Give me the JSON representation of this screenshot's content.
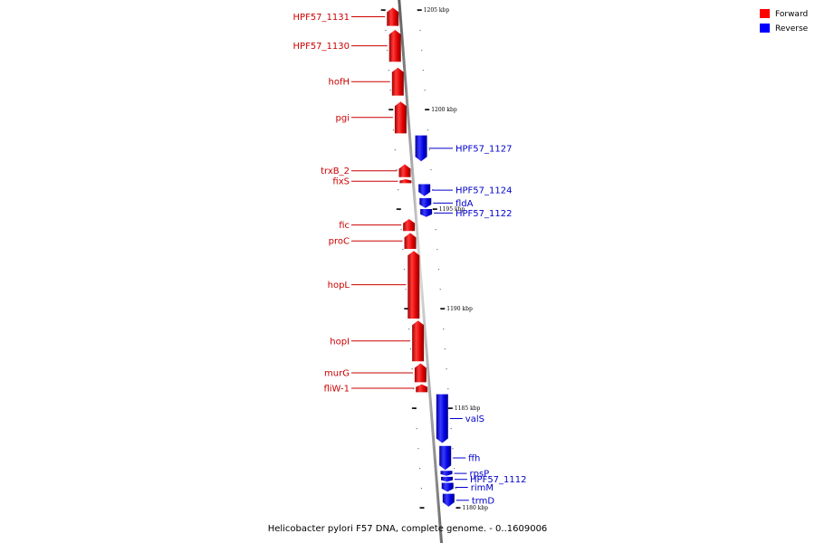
{
  "caption": "Helicobacter pylori F57 DNA, complete genome. - 0..1609006",
  "legend": {
    "forward": {
      "label": "Forward",
      "color": "#ff0000"
    },
    "reverse": {
      "label": "Reverse",
      "color": "#0000ff"
    }
  },
  "scale": {
    "unit": "kbp",
    "ticks": [
      {
        "kbp": 1180,
        "label": "1180 kbp"
      },
      {
        "kbp": 1185,
        "label": "1185 kbp"
      },
      {
        "kbp": 1190,
        "label": "1190 kbp"
      },
      {
        "kbp": 1195,
        "label": "1195 kbp"
      },
      {
        "kbp": 1200,
        "label": "1200 kbp"
      },
      {
        "kbp": 1205,
        "label": "1205 kbp"
      }
    ]
  },
  "genes": [
    {
      "name": "HPF57_1131",
      "strand": "forward",
      "start_kbp": 1205.12,
      "end_kbp": 1204.2
    },
    {
      "name": "HPF57_1130",
      "strand": "forward",
      "start_kbp": 1204.0,
      "end_kbp": 1202.4
    },
    {
      "name": "hofH",
      "strand": "forward",
      "start_kbp": 1202.1,
      "end_kbp": 1200.7
    },
    {
      "name": "pgi",
      "strand": "forward",
      "start_kbp": 1200.4,
      "end_kbp": 1198.8
    },
    {
      "name": "HPF57_1127",
      "strand": "reverse",
      "start_kbp": 1198.7,
      "end_kbp": 1197.4
    },
    {
      "name": "trxB_2",
      "strand": "forward",
      "start_kbp": 1197.25,
      "end_kbp": 1196.6
    },
    {
      "name": "fixS",
      "strand": "forward",
      "start_kbp": 1196.5,
      "end_kbp": 1196.3
    },
    {
      "name": "HPF57_1124",
      "strand": "reverse",
      "start_kbp": 1196.25,
      "end_kbp": 1195.65
    },
    {
      "name": "fldA",
      "strand": "reverse",
      "start_kbp": 1195.55,
      "end_kbp": 1195.05
    },
    {
      "name": "HPF57_1122",
      "strand": "reverse",
      "start_kbp": 1195.0,
      "end_kbp": 1194.6
    },
    {
      "name": "fic",
      "strand": "forward",
      "start_kbp": 1194.5,
      "end_kbp": 1193.9
    },
    {
      "name": "proC",
      "strand": "forward",
      "start_kbp": 1193.8,
      "end_kbp": 1193.0
    },
    {
      "name": "hopL",
      "strand": "forward",
      "start_kbp": 1192.9,
      "end_kbp": 1189.5
    },
    {
      "name": "hopI",
      "strand": "forward",
      "start_kbp": 1189.4,
      "end_kbp": 1187.35
    },
    {
      "name": "murG",
      "strand": "forward",
      "start_kbp": 1187.25,
      "end_kbp": 1186.3
    },
    {
      "name": "fliW-1",
      "strand": "forward",
      "start_kbp": 1186.2,
      "end_kbp": 1185.8
    },
    {
      "name": "valS",
      "strand": "reverse",
      "start_kbp": 1185.7,
      "end_kbp": 1183.25
    },
    {
      "name": "ffh",
      "strand": "reverse",
      "start_kbp": 1183.1,
      "end_kbp": 1181.9
    },
    {
      "name": "rpsP",
      "strand": "reverse",
      "start_kbp": 1181.85,
      "end_kbp": 1181.6
    },
    {
      "name": "HPF57_1112",
      "strand": "reverse",
      "start_kbp": 1181.55,
      "end_kbp": 1181.3
    },
    {
      "name": "rimM",
      "strand": "reverse",
      "start_kbp": 1181.25,
      "end_kbp": 1180.8
    },
    {
      "name": "trmD",
      "strand": "reverse",
      "start_kbp": 1180.7,
      "end_kbp": 1180.05
    }
  ]
}
